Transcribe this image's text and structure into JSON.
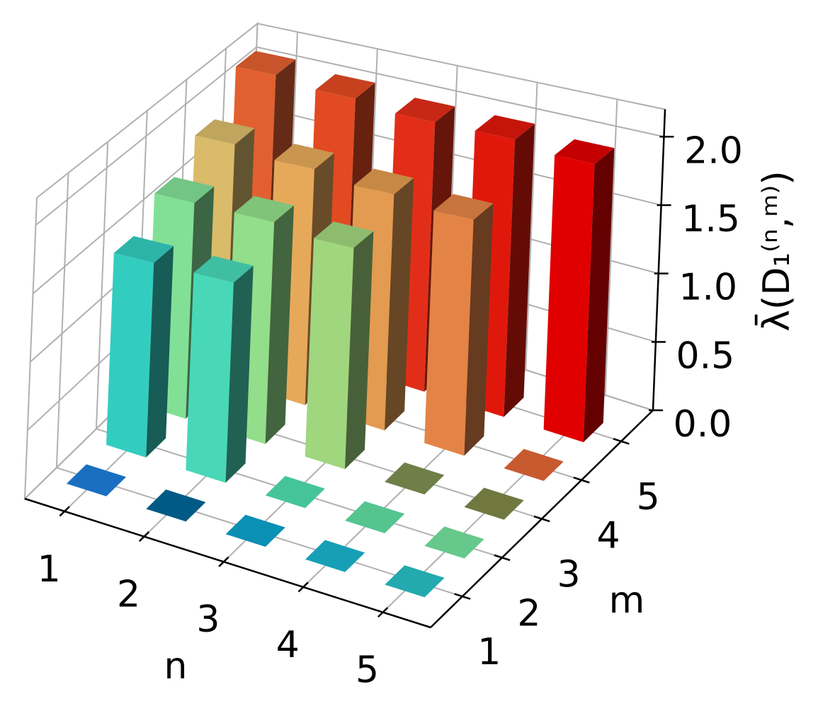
{
  "chart_data": {
    "type": "bar3d",
    "xlabel": "n",
    "ylabel": "m",
    "zlabel": "λ̄(D₁⁽ⁿ,ᵐ⁾)",
    "x": [
      1,
      2,
      3,
      4,
      5
    ],
    "y": [
      1,
      2,
      3,
      4,
      5
    ],
    "values": [
      [
        0,
        1.45,
        1.65,
        1.85,
        2.15
      ],
      [
        0,
        1.45,
        1.65,
        1.8,
        2.1
      ],
      [
        0,
        0,
        1.6,
        1.75,
        2.05
      ],
      [
        0,
        0,
        0,
        1.7,
        2.05
      ],
      [
        0,
        0,
        0,
        0,
        2.0
      ]
    ],
    "colors": [
      [
        "#1a6fc0",
        "#33cdc0",
        "#82e096",
        "#d9bb6a",
        "#e26030"
      ],
      [
        "#005a85",
        "#48d8b8",
        "#92de8a",
        "#e6a95a",
        "#e24a22"
      ],
      [
        "#0a8fb5",
        "#45c49a",
        "#a0d67e",
        "#e29b50",
        "#e22e18"
      ],
      [
        "#17a0b5",
        "#55c590",
        "#6e7f48",
        "#e38446",
        "#e0180c"
      ],
      [
        "#22aaae",
        "#66c88a",
        "#707840",
        "#c85a30",
        "#e00000"
      ]
    ],
    "xlim": [
      0.5,
      5.6
    ],
    "ylim": [
      0.2,
      5.8
    ],
    "zlim": [
      0,
      2.2
    ],
    "xticks": [
      1,
      2,
      3,
      4,
      5
    ],
    "yticks": [
      1,
      2,
      3,
      4,
      5
    ],
    "zticks": [
      {
        "value": 0,
        "label": "0.0"
      },
      {
        "value": 0.5,
        "label": "0.5"
      },
      {
        "value": 1,
        "label": "1.0"
      },
      {
        "value": 1.5,
        "label": "1.5"
      },
      {
        "value": 2,
        "label": "2.0"
      }
    ],
    "grid": true
  }
}
